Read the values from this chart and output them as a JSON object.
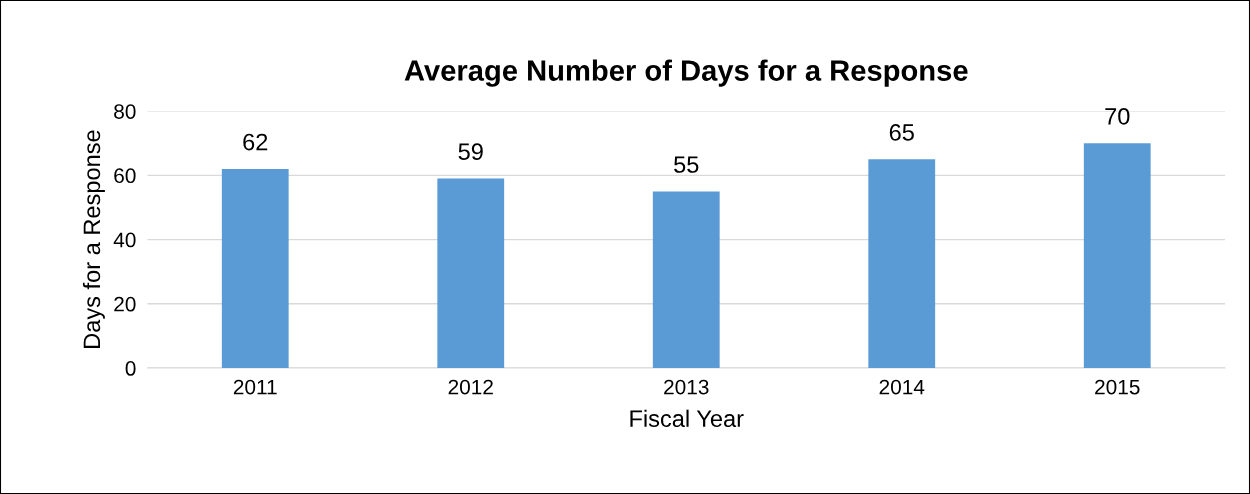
{
  "chart_data": {
    "type": "bar",
    "title": "Average Number of Days for a Response",
    "xlabel": "Fiscal Year",
    "ylabel": "Days for a Response",
    "categories": [
      "2011",
      "2012",
      "2013",
      "2014",
      "2015"
    ],
    "values": [
      62,
      59,
      55,
      65,
      70
    ],
    "color": "#5b9bd5",
    "ylim": [
      0,
      80
    ],
    "yticks": [
      0,
      20,
      40,
      60,
      80
    ],
    "grid": "y",
    "data_labels": true
  }
}
